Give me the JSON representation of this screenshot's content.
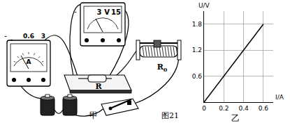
{
  "figure": "图21",
  "diagram": {
    "label": "甲",
    "ammeter": {
      "symbol": "A",
      "terminals": [
        "-",
        "0.6",
        "3"
      ]
    },
    "voltmeter": {
      "symbol": "V",
      "terminals": [
        "-",
        "3",
        "15"
      ]
    },
    "resistor": "R",
    "rheostat": {
      "text": "R",
      "subscript": "0"
    }
  },
  "chart_data": {
    "type": "line",
    "label": "乙",
    "xlabel": "I/A",
    "ylabel": "U/V",
    "x": [
      0,
      0.6
    ],
    "values": [
      0,
      1.8
    ],
    "color": "#000000",
    "xlim": [
      0,
      0.7
    ],
    "ylim": [
      0,
      2.1
    ],
    "xticks": [
      0,
      0.2,
      0.4,
      0.6
    ],
    "yticks": [
      0.6,
      1.2,
      1.8
    ],
    "grid": true
  }
}
